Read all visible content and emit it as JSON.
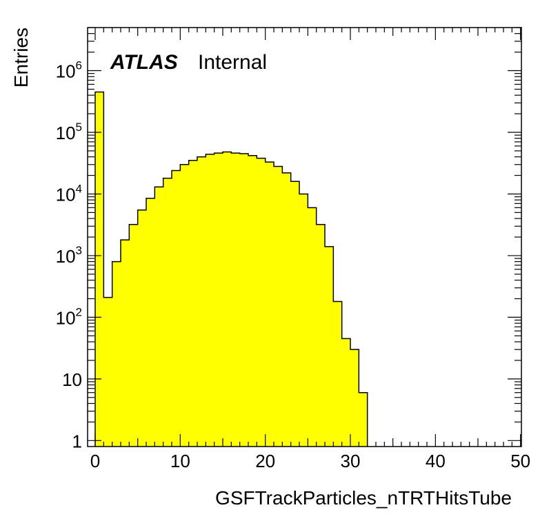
{
  "chart_data": {
    "type": "bar",
    "histogram": true,
    "xlabel": "GSFTrackParticles_nTRTHitsTube",
    "ylabel": "Entries",
    "x_bin_edges_start": 0,
    "bin_width": 1,
    "values": [
      450000,
      210,
      800,
      1800,
      3200,
      5500,
      8500,
      13000,
      18000,
      24000,
      30000,
      35000,
      40000,
      44000,
      46000,
      48000,
      46000,
      45000,
      42000,
      38000,
      33000,
      28000,
      22000,
      16000,
      10000,
      6000,
      3200,
      1400,
      180,
      45,
      30,
      6
    ],
    "xlim": [
      0,
      51
    ],
    "ylim": [
      0.8,
      5000000
    ],
    "log_y": true,
    "fill_color": "#ffff00",
    "line_color": "#000000",
    "x_ticks": [
      {
        "value": 0,
        "label": "0"
      },
      {
        "value": 10,
        "label": "10"
      },
      {
        "value": 20,
        "label": "20"
      },
      {
        "value": 30,
        "label": "30"
      },
      {
        "value": 40,
        "label": "40"
      },
      {
        "value": 50,
        "label": "50"
      }
    ],
    "y_ticks": [
      {
        "value": 1,
        "base": "1",
        "exp": ""
      },
      {
        "value": 10,
        "base": "10",
        "exp": ""
      },
      {
        "value": 100,
        "base": "10",
        "exp": "2"
      },
      {
        "value": 1000,
        "base": "10",
        "exp": "3"
      },
      {
        "value": 10000,
        "base": "10",
        "exp": "4"
      },
      {
        "value": 100000,
        "base": "10",
        "exp": "5"
      },
      {
        "value": 1000000,
        "base": "10",
        "exp": "6"
      }
    ],
    "annotation": {
      "atlas": "ATLAS",
      "status": "Internal"
    }
  }
}
